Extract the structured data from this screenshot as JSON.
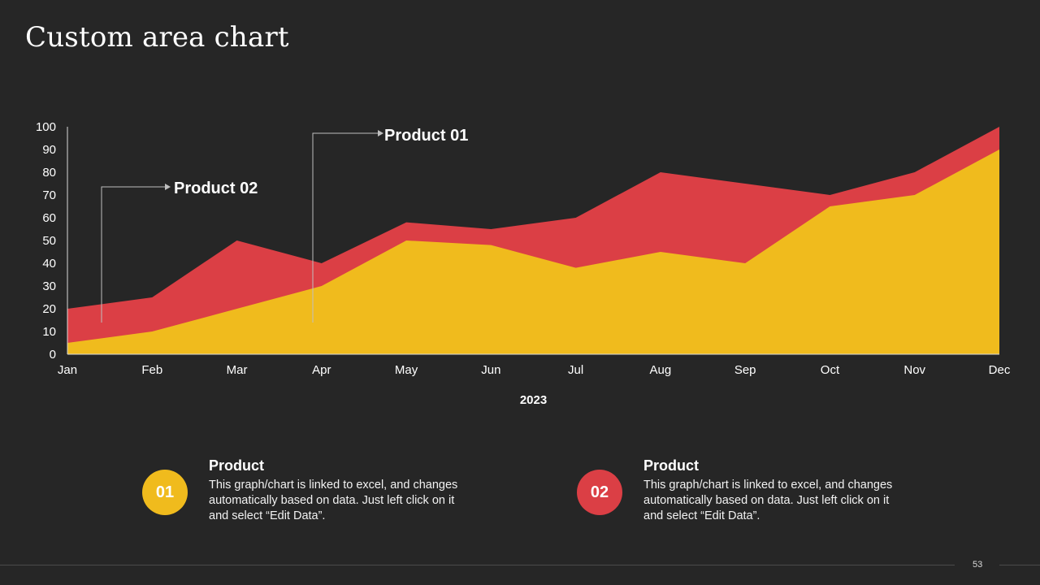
{
  "page": {
    "title": "Custom area chart",
    "page_number": "53"
  },
  "chart_data": {
    "type": "area",
    "title": "",
    "xlabel": "2023",
    "ylabel": "",
    "categories": [
      "Jan",
      "Feb",
      "Mar",
      "Apr",
      "May",
      "Jun",
      "Jul",
      "Aug",
      "Sep",
      "Oct",
      "Nov",
      "Dec"
    ],
    "ylim": [
      0,
      100
    ],
    "yticks": [
      0,
      10,
      20,
      30,
      40,
      50,
      60,
      70,
      80,
      90,
      100
    ],
    "series": [
      {
        "name": "Product 02",
        "color": "#db3f45",
        "values": [
          20,
          25,
          50,
          40,
          58,
          55,
          60,
          80,
          75,
          70,
          80,
          100
        ]
      },
      {
        "name": "Product 01",
        "color": "#f0bb1d",
        "values": [
          5,
          10,
          20,
          30,
          50,
          48,
          38,
          45,
          40,
          65,
          70,
          90
        ]
      }
    ],
    "annotations": [
      {
        "label": "Product 02",
        "series": "Product 02"
      },
      {
        "label": "Product 01",
        "series": "Product 01"
      }
    ]
  },
  "cards": [
    {
      "number": "01",
      "color": "#f0bb1d",
      "title": "Product",
      "text": "This graph/chart is linked to excel, and changes automatically based on data. Just left click on it and select “Edit Data”."
    },
    {
      "number": "02",
      "color": "#db3f45",
      "title": "Product",
      "text": "This graph/chart is linked to excel, and changes automatically based on data. Just left click on it and select “Edit Data”."
    }
  ]
}
